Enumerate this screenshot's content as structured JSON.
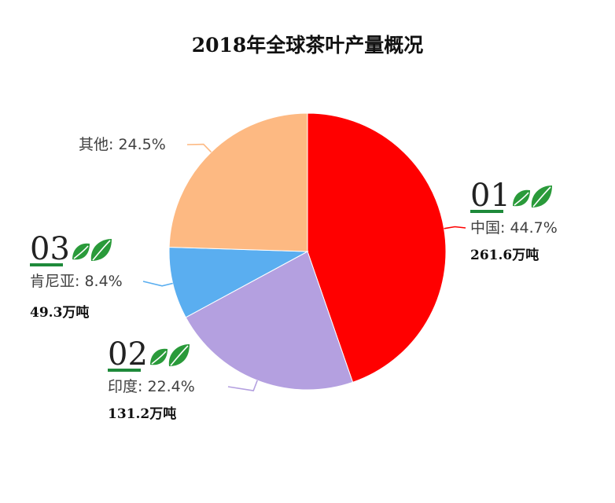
{
  "chart_data": {
    "type": "pie",
    "title": "2018年全球茶叶产量概况",
    "slices": [
      {
        "label": "中国",
        "value": 44.7,
        "value_text": "44.7%",
        "color": "#ff0000",
        "rank": "01",
        "amount": "261.6万吨",
        "leader_color": "#ff0000"
      },
      {
        "label": "印度",
        "value": 22.4,
        "value_text": "22.4%",
        "color": "#b4a0e0",
        "rank": "02",
        "amount": "131.2万吨",
        "leader_color": "#b4a0e0"
      },
      {
        "label": "肯尼亚",
        "value": 8.4,
        "value_text": "8.4%",
        "color": "#5aaef0",
        "rank": "03",
        "amount": "49.3万吨",
        "leader_color": "#5aaef0"
      },
      {
        "label": "其他",
        "value": 24.5,
        "value_text": "24.5%",
        "color": "#fdb982",
        "leader_color": "#fdb982"
      }
    ],
    "start_angle_deg": 0,
    "direction": "clockwise",
    "leaf_color": "#2a9a3a",
    "underline_color": "#1e8a3a"
  }
}
